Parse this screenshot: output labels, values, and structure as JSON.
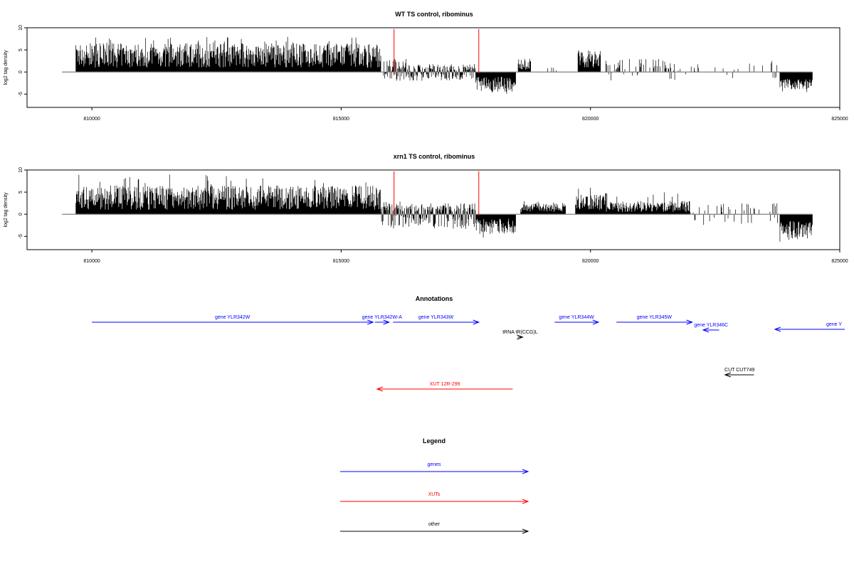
{
  "colors": {
    "gene": "#0000ff",
    "xut": "#ff0000",
    "other": "#000000",
    "marker": "#ff0000",
    "axis": "#000000",
    "baseline": "#808080"
  },
  "chart_data": [
    {
      "type": "bar",
      "title": "WT TS control, ribominus",
      "ylabel": "log2 tag density",
      "xlabel": "",
      "xlim": [
        808700,
        825000
      ],
      "ylim": [
        -8,
        10
      ],
      "xticks": [
        "810000",
        "815000",
        "820000",
        "825000"
      ],
      "yticks": [
        "10",
        "5",
        "0",
        "-5"
      ],
      "marker_lines_x": [
        816060,
        817760
      ],
      "baseline_range": [
        809400,
        824450
      ],
      "grid": false,
      "density_segments": [
        {
          "x": [
            809680,
            815800
          ],
          "mode": "pos",
          "min": 1,
          "max": 6.5,
          "peak": 8
        },
        {
          "x": [
            815850,
            816300
          ],
          "mode": "mix",
          "min": 0.3,
          "max": 3,
          "neg": 2
        },
        {
          "x": [
            816300,
            817700
          ],
          "mode": "mix",
          "min": 0.2,
          "max": 1.8,
          "neg": 2
        },
        {
          "x": [
            817700,
            818500
          ],
          "mode": "neg",
          "min": 1,
          "max": 4.5,
          "peak": 5
        },
        {
          "x": [
            818550,
            818800
          ],
          "mode": "pos",
          "min": 0.5,
          "max": 3
        },
        {
          "x": [
            819000,
            819450
          ],
          "mode": "sparse",
          "min": 0.2,
          "max": 1.5,
          "density": 0.15
        },
        {
          "x": [
            819750,
            820200
          ],
          "mode": "pos",
          "min": 1,
          "max": 5,
          "peak": 6
        },
        {
          "x": [
            820300,
            821500
          ],
          "mode": "sparse",
          "min": 0.5,
          "max": 3,
          "density": 0.3
        },
        {
          "x": [
            821500,
            822300
          ],
          "mode": "sparse",
          "min": 0.2,
          "max": 2,
          "density": 0.2,
          "neg": 2
        },
        {
          "x": [
            822500,
            823500
          ],
          "mode": "sparse",
          "min": 0.2,
          "max": 2,
          "density": 0.08
        },
        {
          "x": [
            823600,
            823800
          ],
          "mode": "sparse",
          "min": 0.2,
          "max": 2.5,
          "density": 0.3,
          "neg": 2
        },
        {
          "x": [
            823800,
            824450
          ],
          "mode": "neg",
          "min": 1.5,
          "max": 4,
          "peak": 5
        }
      ]
    },
    {
      "type": "bar",
      "title": "xrn1 TS control, ribominus",
      "ylabel": "log2 tag density",
      "xlabel": "",
      "xlim": [
        808700,
        825000
      ],
      "ylim": [
        -8,
        10
      ],
      "xticks": [
        "810000",
        "815000",
        "820000",
        "825000"
      ],
      "yticks": [
        "10",
        "5",
        "0",
        "-5"
      ],
      "marker_lines_x": [
        816060,
        817760
      ],
      "baseline_range": [
        809400,
        824450
      ],
      "grid": false,
      "density_segments": [
        {
          "x": [
            809680,
            815800
          ],
          "mode": "pos",
          "min": 1,
          "max": 6.5,
          "peak": 9
        },
        {
          "x": [
            815800,
            816300
          ],
          "mode": "mix",
          "min": 0.5,
          "max": 3,
          "neg": 3.5
        },
        {
          "x": [
            816300,
            817700
          ],
          "mode": "mix",
          "min": 0.4,
          "max": 2.5,
          "neg": 3.5
        },
        {
          "x": [
            817700,
            818500
          ],
          "mode": "neg",
          "min": 1,
          "max": 4.5,
          "peak": 5.5
        },
        {
          "x": [
            818600,
            819500
          ],
          "mode": "pos",
          "min": 0.5,
          "max": 2.5,
          "peak": 3
        },
        {
          "x": [
            819700,
            820300
          ],
          "mode": "pos",
          "min": 1,
          "max": 4.5,
          "peak": 6
        },
        {
          "x": [
            820300,
            822000
          ],
          "mode": "pos",
          "min": 0.5,
          "max": 3,
          "peak": 5
        },
        {
          "x": [
            822000,
            823400
          ],
          "mode": "sparse",
          "min": 0.2,
          "max": 2.5,
          "density": 0.25,
          "neg": 2.5
        },
        {
          "x": [
            823600,
            823800
          ],
          "mode": "sparse",
          "min": 0.2,
          "max": 2.5,
          "density": 0.3,
          "neg": 2.5
        },
        {
          "x": [
            823800,
            824450
          ],
          "mode": "neg",
          "min": 1.5,
          "max": 5.5,
          "peak": 7
        }
      ]
    }
  ],
  "annotations": {
    "title": "Annotations",
    "features": [
      {
        "label": "gene YLR342W",
        "category": "gene",
        "start": 810000,
        "end": 815640,
        "strand": "+",
        "row": 0
      },
      {
        "label": "gene YLR342W-A",
        "category": "gene",
        "start": 815680,
        "end": 815960,
        "strand": "+",
        "row": 0
      },
      {
        "label": "gene YLR343W",
        "category": "gene",
        "start": 816040,
        "end": 817760,
        "strand": "+",
        "row": 0
      },
      {
        "label": "gene YLR344W",
        "category": "gene",
        "start": 819280,
        "end": 820160,
        "strand": "+",
        "row": 0
      },
      {
        "label": "gene YLR345W",
        "category": "gene",
        "start": 820520,
        "end": 822040,
        "strand": "+",
        "row": 0
      },
      {
        "label": "gene YLR346C",
        "category": "gene",
        "start": 822260,
        "end": 822580,
        "strand": "-",
        "row": 1
      },
      {
        "label": "gene Y",
        "category": "gene",
        "start": 823700,
        "end": 825100,
        "strand": "-",
        "row": 2
      },
      {
        "label": "tRNA tR(CCG)L",
        "category": "other",
        "start": 818540,
        "end": 818640,
        "strand": "+",
        "row": 3
      },
      {
        "label": "CUT CUT749",
        "category": "other",
        "start": 822700,
        "end": 823280,
        "strand": "-",
        "row": 4
      },
      {
        "label": "XUT 12R-299",
        "category": "xut",
        "start": 815720,
        "end": 818440,
        "strand": "-",
        "row": 5
      }
    ]
  },
  "legend": {
    "title": "Legend",
    "items": [
      {
        "label": "genes",
        "category": "gene"
      },
      {
        "label": "XUTs",
        "category": "xut"
      },
      {
        "label": "other",
        "category": "other"
      }
    ]
  }
}
